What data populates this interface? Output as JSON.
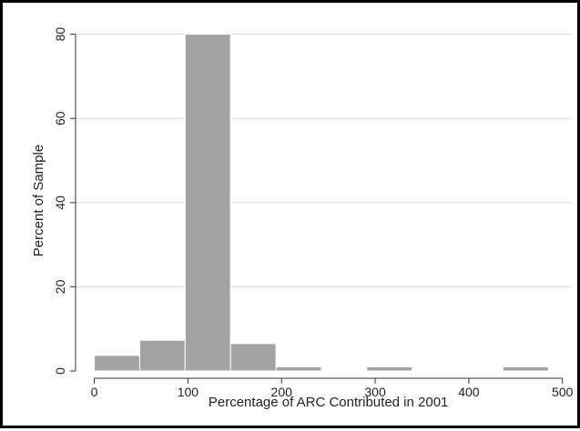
{
  "chart_data": {
    "type": "bar",
    "subtype": "histogram",
    "xlabel": "Percentage of ARC Contributed in 2001",
    "ylabel": "Percent of Sample",
    "xlim": [
      -20,
      510
    ],
    "ylim": [
      0,
      81
    ],
    "xticks": [
      0,
      100,
      200,
      300,
      400,
      500
    ],
    "yticks": [
      0,
      20,
      40,
      60,
      80
    ],
    "bin_width": 48.5,
    "bins": [
      {
        "start": 0,
        "value": 3.7
      },
      {
        "start": 48.5,
        "value": 7.3
      },
      {
        "start": 97,
        "value": 80
      },
      {
        "start": 145.5,
        "value": 6.5
      },
      {
        "start": 194,
        "value": 1.0
      },
      {
        "start": 291,
        "value": 1.0
      },
      {
        "start": 436.5,
        "value": 1.0
      }
    ],
    "grid": true,
    "legend": "none",
    "colors": {
      "bar_fill": "#a3a3a3",
      "bar_edge": "#ffffff",
      "grid": "#d9d9d9",
      "axis": "#333333",
      "border": "#000000"
    }
  }
}
